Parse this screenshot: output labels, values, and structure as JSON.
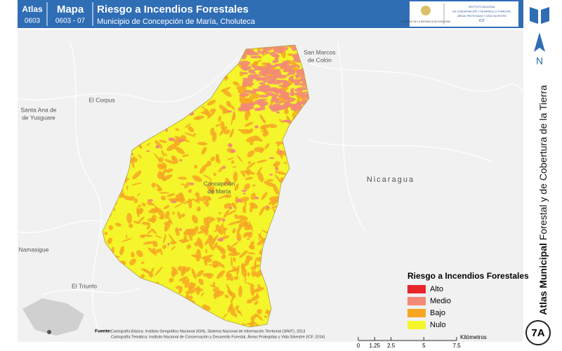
{
  "header": {
    "atlas_label": "Atlas",
    "atlas_code": "0603",
    "mapa_label": "Mapa",
    "mapa_code": "0603 - 07",
    "title": "Riesgo a Incendios Forestales",
    "subtitle": "Municipio de Concepción de María, Choluteca",
    "logo_left": "GOBIERNO DE LA REPÚBLICA DE HONDURAS",
    "logo_right": [
      "INSTITUTO NACIONAL",
      "DE CONSERVACIÓN Y DESARROLLO FORESTAL",
      "ÁREAS PROTEGIDAS Y VIDA SILVESTRE",
      "ICF"
    ]
  },
  "sidebar": {
    "bold": "Atlas Municipal",
    "rest": "Forestal y de Cobertura de la Tierra",
    "north": "N",
    "badge": "7A"
  },
  "places": [
    {
      "lines": [
        "San Marcos",
        "de Colón"
      ]
    },
    {
      "lines": [
        "El Corpus"
      ]
    },
    {
      "lines": [
        "Santa Ana de",
        "de Yusguare"
      ]
    },
    {
      "lines": [
        "Concepción",
        "de María"
      ]
    },
    {
      "lines": [
        "Nicaragua"
      ]
    },
    {
      "lines": [
        "Namasigue"
      ]
    },
    {
      "lines": [
        "El Triunfo"
      ]
    }
  ],
  "legend": {
    "title": "Riesgo a Incendios Forestales",
    "items": [
      {
        "label": "Alto",
        "color": "#e8262a"
      },
      {
        "label": "Medio",
        "color": "#f38a77"
      },
      {
        "label": "Bajo",
        "color": "#f6a623"
      },
      {
        "label": "Nulo",
        "color": "#f4f52a"
      }
    ]
  },
  "scale": {
    "ticks": [
      0,
      1.25,
      2.5,
      5,
      7.5
    ],
    "unit": "Kilómetros"
  },
  "source": {
    "label": "Fuente:",
    "lines": [
      "Cartografía Básica: Instituto Geográfico Nacional (IGN), Sistema Nacional de Información Territorial (SINIT), 2013",
      "Cartografía Temática: Instituto Nacional de Conservación y Desarrollo Forestal, Áreas Protegidas y Vida Silvestre (ICF, 2014)"
    ]
  }
}
